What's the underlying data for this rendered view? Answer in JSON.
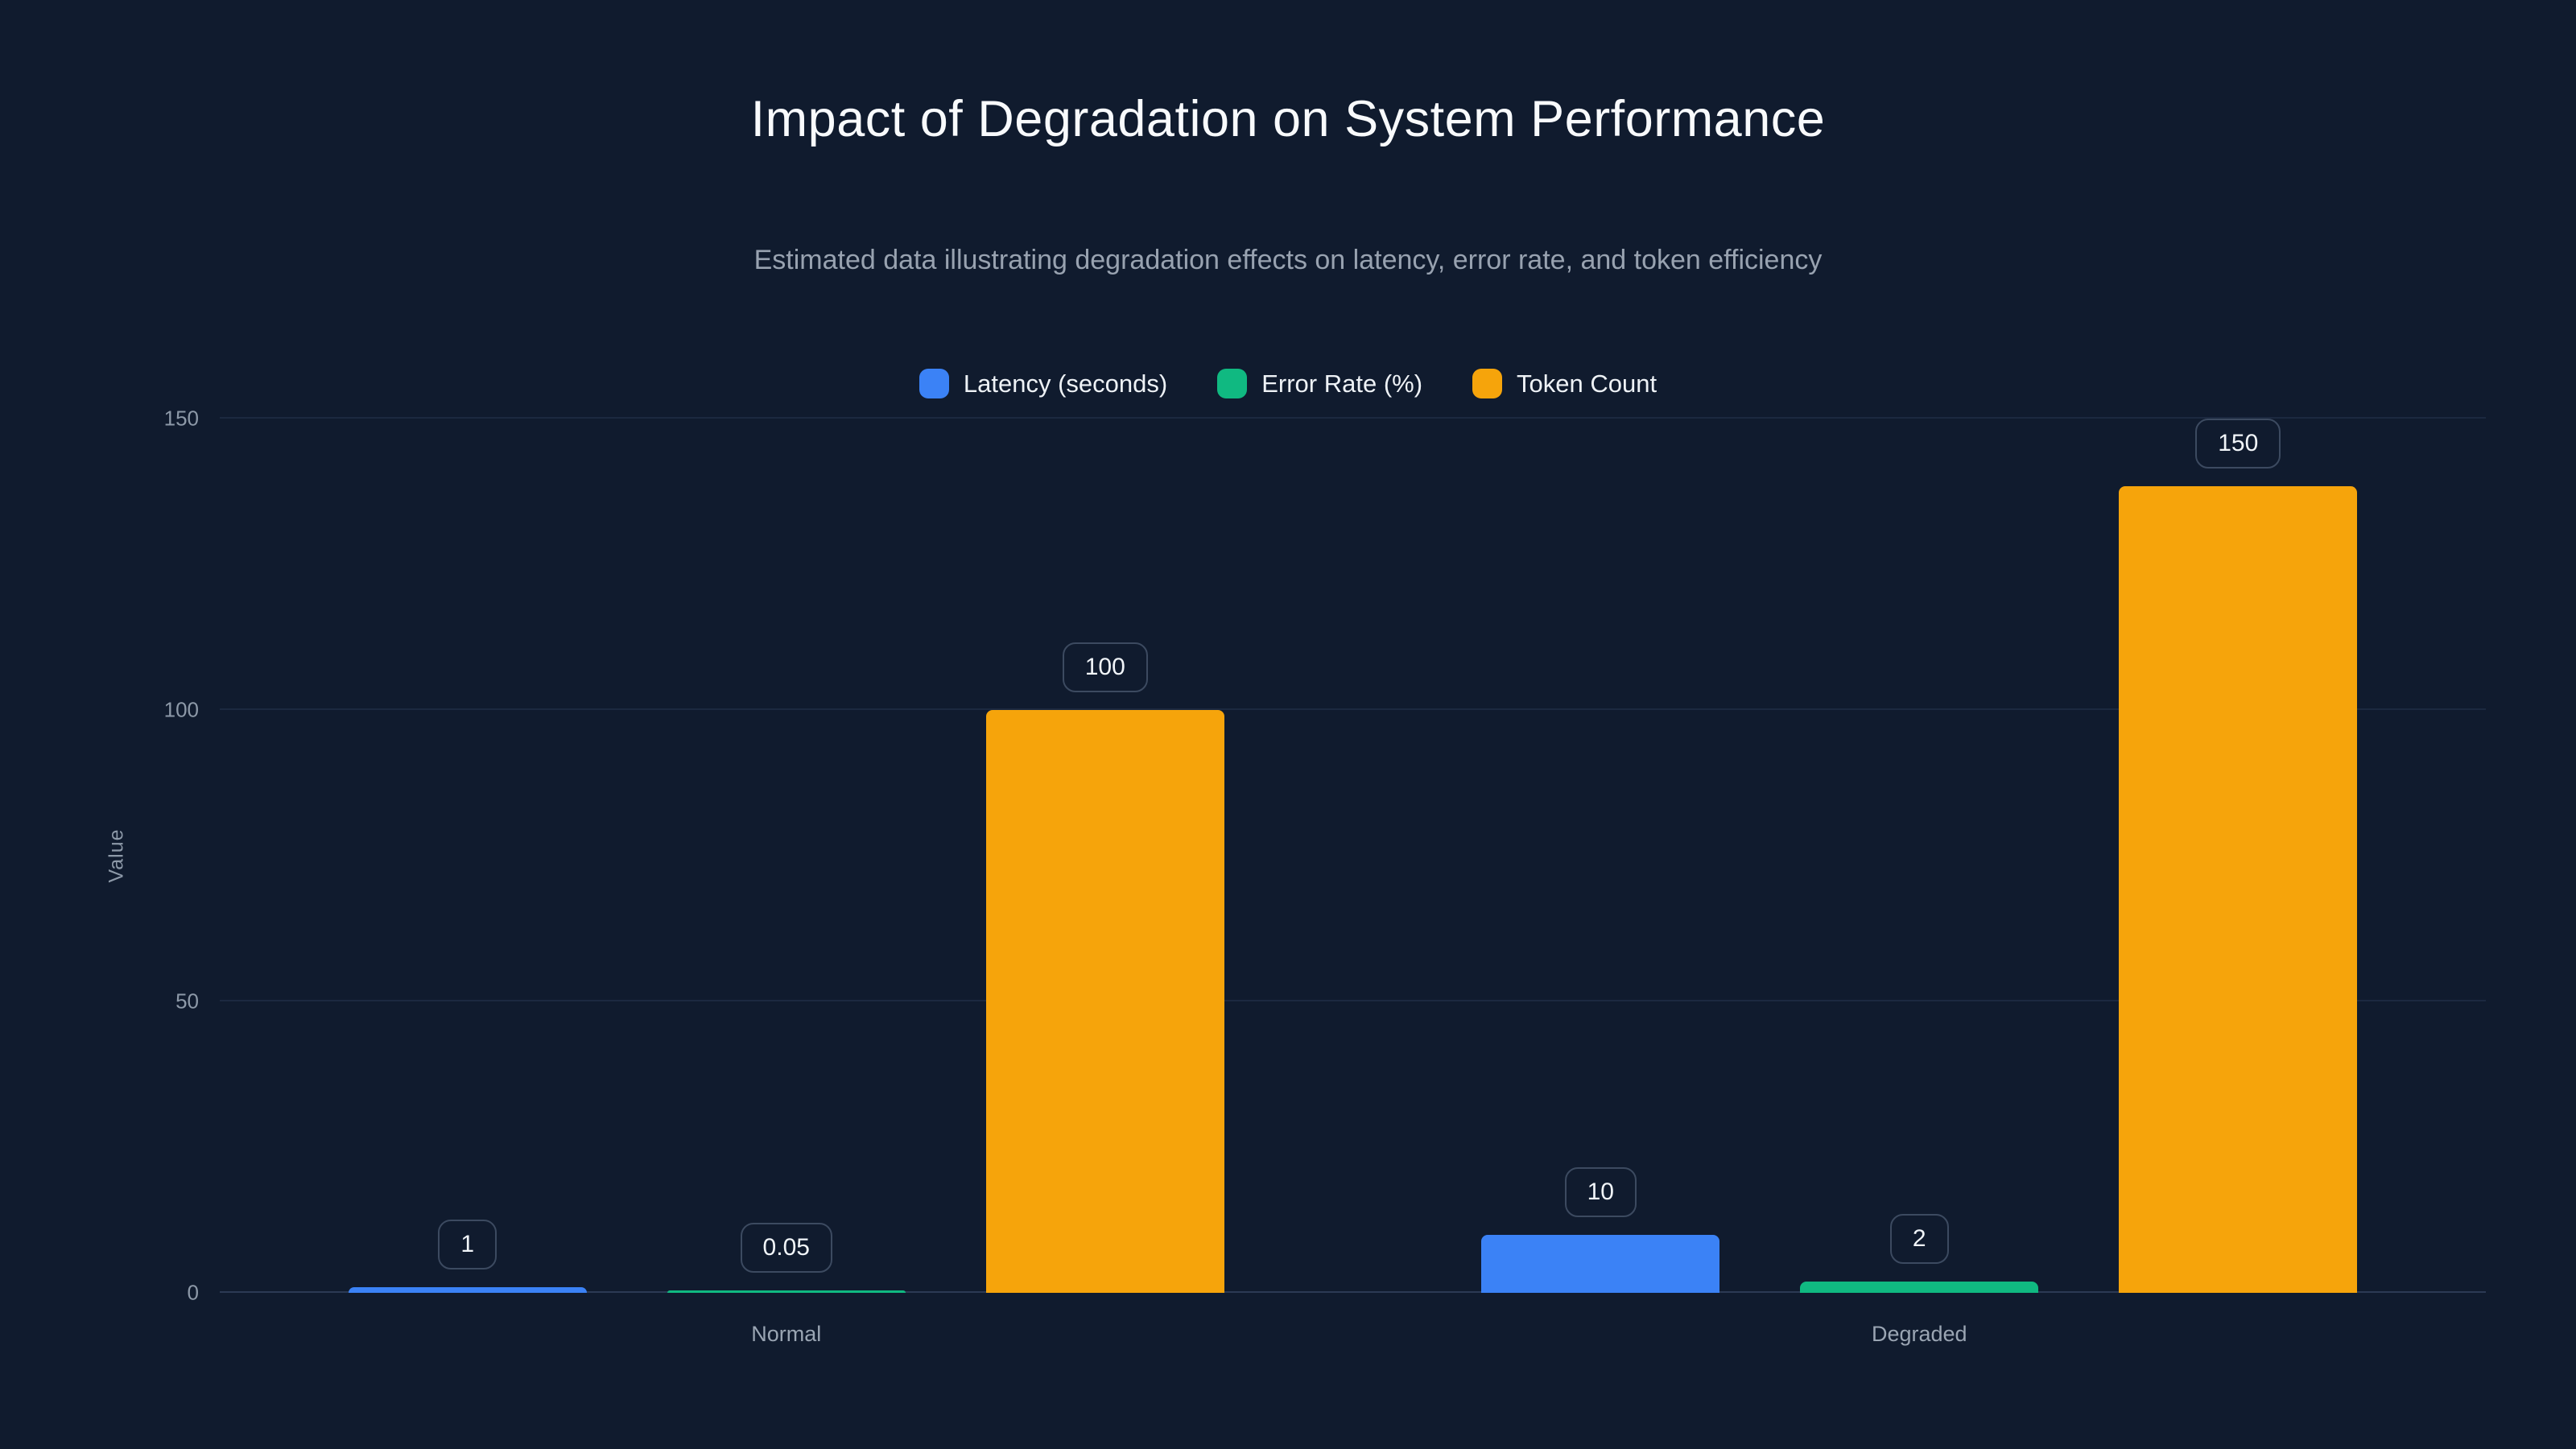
{
  "page": {
    "background_color": "#101b2e"
  },
  "chart_data": {
    "type": "bar",
    "title": "Impact of Degradation on System Performance",
    "subtitle": "Estimated data illustrating degradation effects on latency, error rate, and token efficiency",
    "categories": [
      "Normal",
      "Degraded"
    ],
    "series": [
      {
        "name": "Latency (seconds)",
        "color": "#3b82f6",
        "values": [
          1,
          10
        ]
      },
      {
        "name": "Error Rate (%)",
        "color": "#10b981",
        "values": [
          0.05,
          2
        ]
      },
      {
        "name": "Token Count",
        "color": "#f6a40b",
        "values": [
          100,
          150
        ]
      }
    ],
    "value_labels": {
      "Normal": [
        "1",
        "0.05",
        "100"
      ],
      "Degraded": [
        "10",
        "2",
        "150"
      ]
    },
    "xlabel": "",
    "ylabel": "Value",
    "yticks": [
      0,
      50,
      100,
      150
    ],
    "ylim": [
      0,
      150
    ],
    "grid": true,
    "legend_position": "top"
  }
}
